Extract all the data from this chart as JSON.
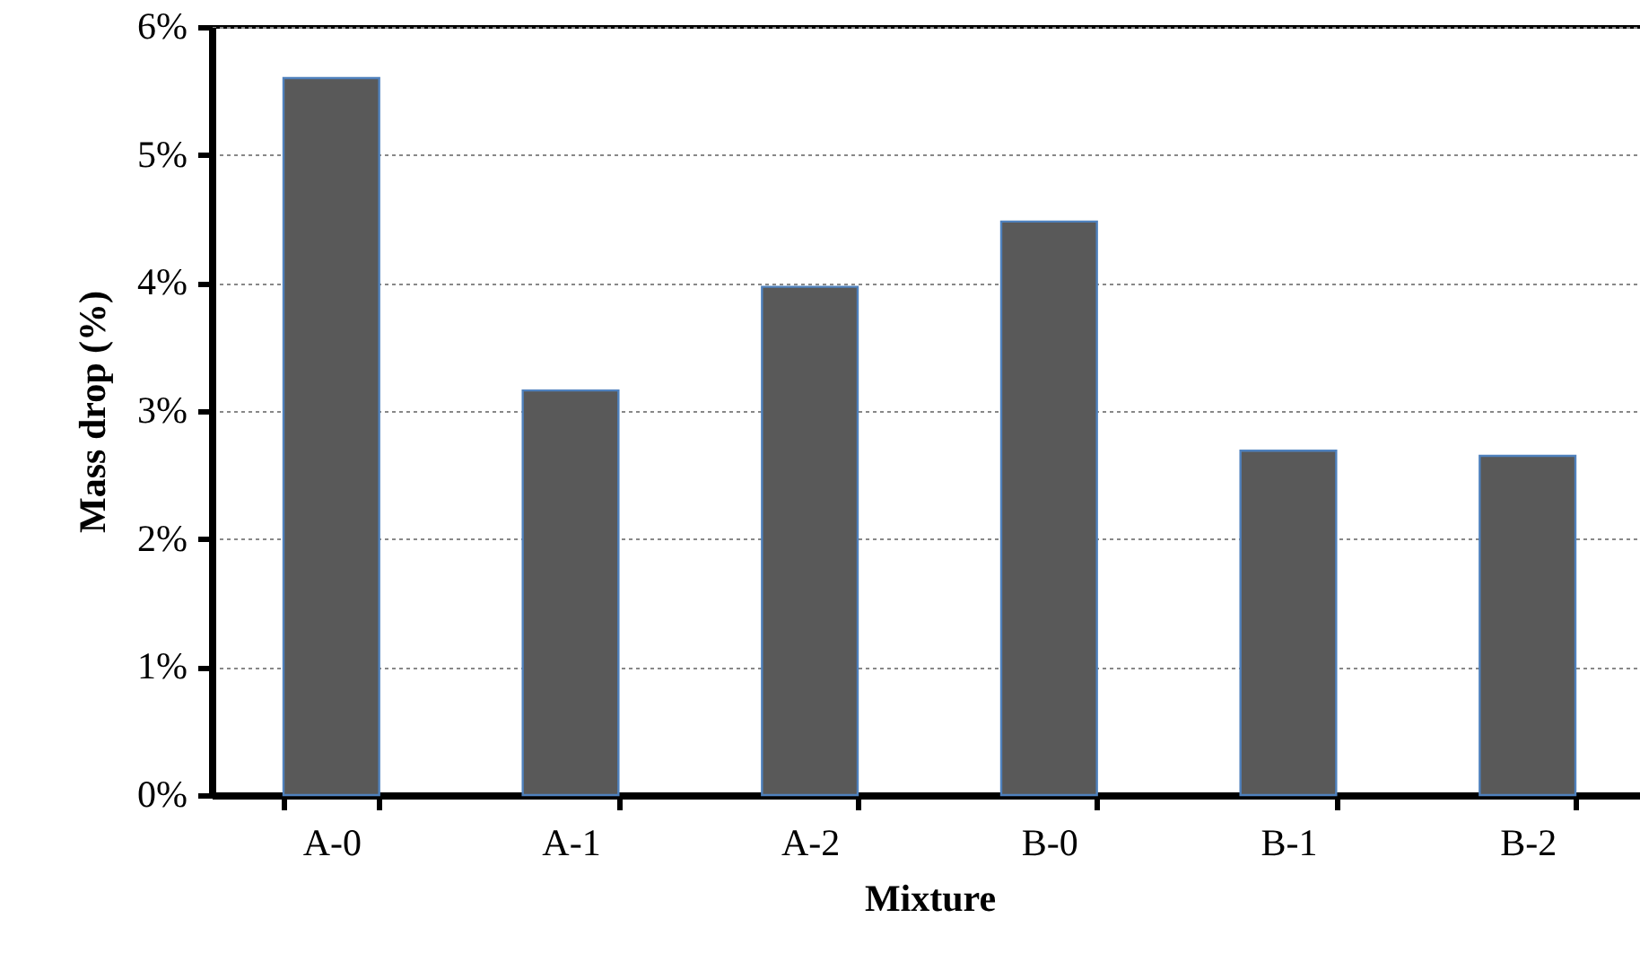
{
  "chart_data": {
    "type": "bar",
    "xlabel": "Mixture",
    "ylabel": "Mass drop (%)",
    "categories": [
      "A-0",
      "A-1",
      "A-2",
      "B-0",
      "B-1",
      "B-2"
    ],
    "values": [
      5.6,
      3.16,
      3.97,
      4.48,
      2.69,
      2.65
    ],
    "color": "#595959",
    "ylim": [
      0,
      6
    ],
    "yticks": [
      {
        "value": 0,
        "label": "0%"
      },
      {
        "value": 1,
        "label": "1%"
      },
      {
        "value": 2,
        "label": "2%"
      },
      {
        "value": 3,
        "label": "3%"
      },
      {
        "value": 4,
        "label": "4%"
      },
      {
        "value": 5,
        "label": "5%"
      },
      {
        "value": 6,
        "label": "6%"
      }
    ],
    "grid": "y"
  }
}
